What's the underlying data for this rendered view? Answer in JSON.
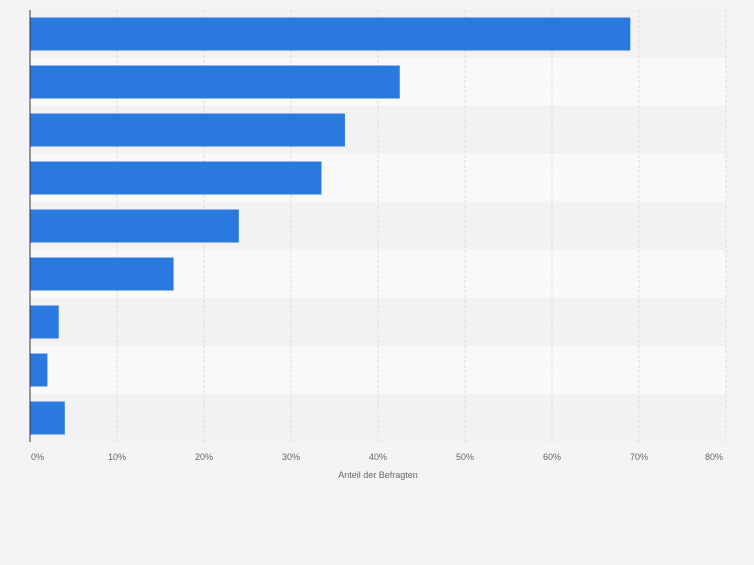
{
  "chart_data": {
    "type": "bar",
    "orientation": "horizontal",
    "title": "",
    "categories": [
      "",
      "",
      "",
      "",
      "",
      "",
      "",
      "",
      ""
    ],
    "values": [
      69,
      42.5,
      36.2,
      33.5,
      24,
      16.5,
      3.3,
      2,
      4
    ],
    "xlabel": "Anteil der Befragten",
    "ylabel": "",
    "xlim": [
      0,
      80
    ],
    "x_ticks": [
      "0%",
      "10%",
      "20%",
      "30%",
      "40%",
      "50%",
      "60%",
      "70%",
      "80%"
    ],
    "grid": true,
    "bar_color": "#2979e0"
  }
}
